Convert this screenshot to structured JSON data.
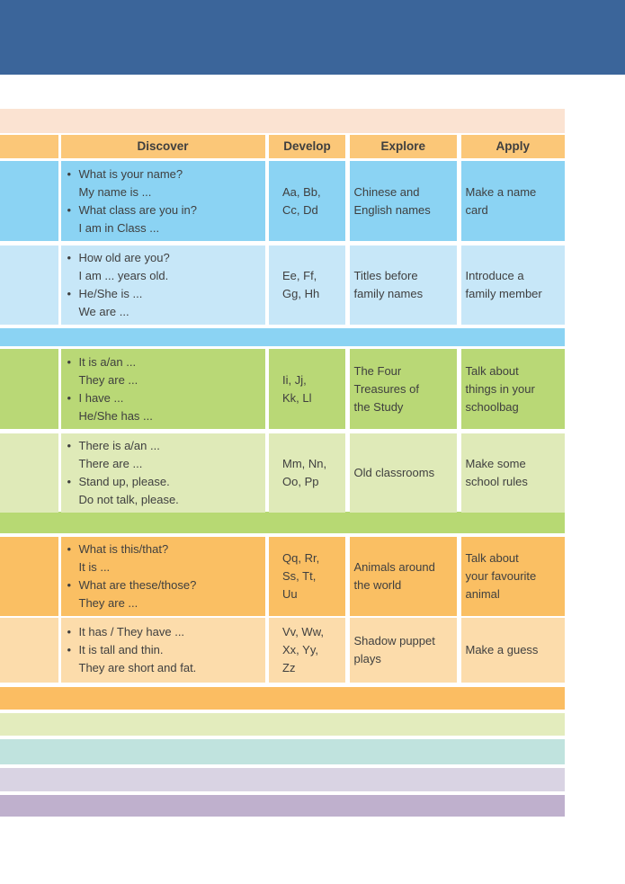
{
  "banner": {
    "color": "#3b659a"
  },
  "peach_band": {
    "color": "#fbe3d2"
  },
  "text_color": "#3f3f3f",
  "table": {
    "header": {
      "bg": "#fbc778",
      "labels": [
        "Discover",
        "Develop",
        "Explore",
        "Apply"
      ]
    },
    "rows": [
      {
        "bg": "#8bd3f3",
        "discover_lines": [
          {
            "bullet": "•",
            "text": "What is your name?"
          },
          {
            "bullet": "",
            "text": "My name is ..."
          },
          {
            "bullet": "•",
            "text": "What class are you in?"
          },
          {
            "bullet": "",
            "text": "I am in Class ..."
          }
        ],
        "develop": "Aa, Bb,\nCc, Dd",
        "explore": "Chinese and\nEnglish names",
        "apply": "Make a name\ncard"
      },
      {
        "bg": "#c7e7f8",
        "discover_lines": [
          {
            "bullet": "•",
            "text": "How old are you?"
          },
          {
            "bullet": "",
            "text": "I am ... years old."
          },
          {
            "bullet": "•",
            "text": "He/She is ..."
          },
          {
            "bullet": "",
            "text": "We are ..."
          }
        ],
        "develop": "Ee, Ff,\nGg, Hh",
        "explore": "Titles before\nfamily names",
        "apply": "Introduce a\nfamily member"
      },
      {
        "bg": "#b9d876",
        "discover_lines": [
          {
            "bullet": "•",
            "text": "It is a/an ..."
          },
          {
            "bullet": "",
            "text": "They are ..."
          },
          {
            "bullet": "•",
            "text": "I have  ..."
          },
          {
            "bullet": "",
            "text": "He/She has ..."
          }
        ],
        "develop": "Ii, Jj,\nKk, Ll",
        "explore": "The Four\nTreasures of\nthe Study",
        "apply": "Talk about\nthings in your\nschoolbag"
      },
      {
        "bg": "#dfeab8",
        "discover_lines": [
          {
            "bullet": "•",
            "text": "There is a/an ..."
          },
          {
            "bullet": "",
            "text": "There are ..."
          },
          {
            "bullet": "•",
            "text": "Stand up, please."
          },
          {
            "bullet": "",
            "text": "Do not talk, please."
          }
        ],
        "develop": "Mm, Nn,\nOo, Pp",
        "explore": "Old classrooms",
        "apply": "Make some\nschool rules"
      },
      {
        "bg": "#fabf63",
        "discover_lines": [
          {
            "bullet": "•",
            "text": "What is this/that?"
          },
          {
            "bullet": "",
            "text": "It is ..."
          },
          {
            "bullet": "•",
            "text": "What are these/those?"
          },
          {
            "bullet": "",
            "text": "They are ..."
          }
        ],
        "develop": "Qq, Rr,\nSs, Tt,\nUu",
        "explore": "Animals around\nthe world",
        "apply": "Talk about\nyour favourite\nanimal"
      },
      {
        "bg": "#fcdcab",
        "discover_lines": [
          {
            "bullet": "•",
            "text": "It has / They have ..."
          },
          {
            "bullet": "•",
            "text": "It is tall and thin."
          },
          {
            "bullet": "",
            "text": "They are short and fat."
          }
        ],
        "develop": "Vv, Ww,\nXx, Yy,\nZz",
        "explore": "Shadow puppet\nplays",
        "apply": "Make a guess"
      }
    ],
    "separators": [
      {
        "after_row": 1,
        "color": "#8bd3f3"
      },
      {
        "after_row": 3,
        "color": "#b7d973"
      },
      {
        "after_row": 5,
        "color": "#fbbd62"
      }
    ]
  },
  "bottom_bands": [
    {
      "name": "yellow-green-band",
      "color": "#e3ecbd"
    },
    {
      "name": "teal-band",
      "color": "#c0e3de"
    },
    {
      "name": "lavender-band",
      "color": "#d9d3e3"
    },
    {
      "name": "purple-band",
      "color": "#bfb0cd"
    }
  ]
}
